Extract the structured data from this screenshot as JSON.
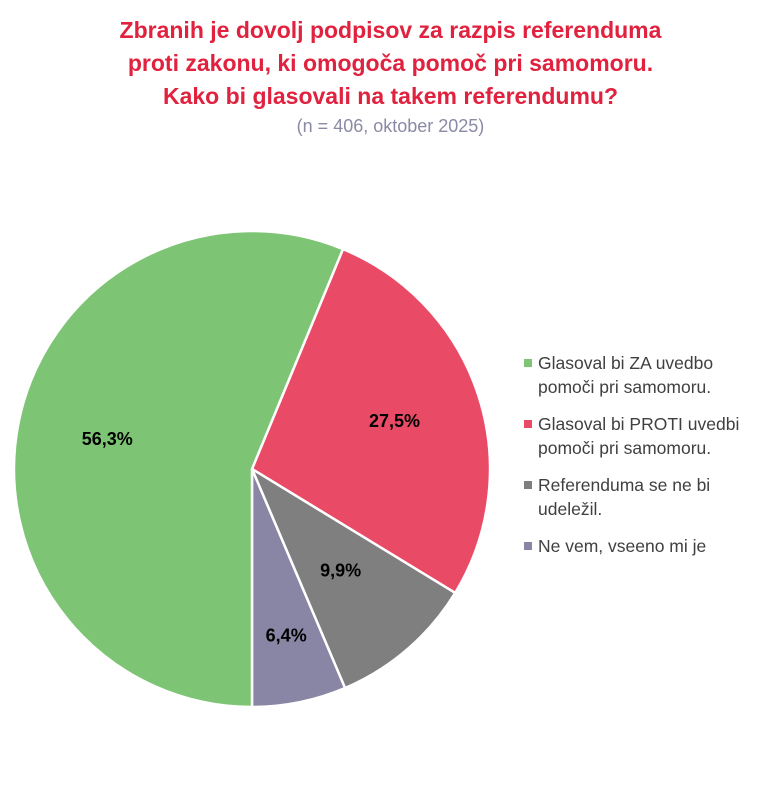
{
  "title_lines": [
    "Zbranih je dovolj podpisov za razpis referenduma",
    "proti zakonu, ki omogoča pomoč pri samomoru.",
    "Kako bi glasovali na takem referendumu?"
  ],
  "subtitle": "(n = 406, oktober 2025)",
  "colors": {
    "title": "#e0223f",
    "subtitle": "#8a8aa6"
  },
  "chart_data": {
    "type": "pie",
    "title": "Zbranih je dovolj podpisov za razpis referenduma proti zakonu, ki omogoča pomoč pri samomoru. Kako bi glasovali na takem referendumu?",
    "subtitle": "(n = 406, oktober 2025)",
    "legend_position": "right",
    "slices": [
      {
        "label": "Glasoval bi ZA uvedbo pomoči pri samomoru.",
        "value": 56.3,
        "display": "56,3%",
        "color": "#7dc574"
      },
      {
        "label": "Glasoval bi PROTI uvedbi pomoči pri samomoru.",
        "value": 27.5,
        "display": "27,5%",
        "color": "#e94b67"
      },
      {
        "label": "Referenduma se ne bi udeležil.",
        "value": 9.9,
        "display": "9,9%",
        "color": "#7f7f7f"
      },
      {
        "label": "Ne vem, vseeno mi je",
        "value": 6.4,
        "display": "6,4%",
        "color": "#8886a4"
      }
    ]
  }
}
